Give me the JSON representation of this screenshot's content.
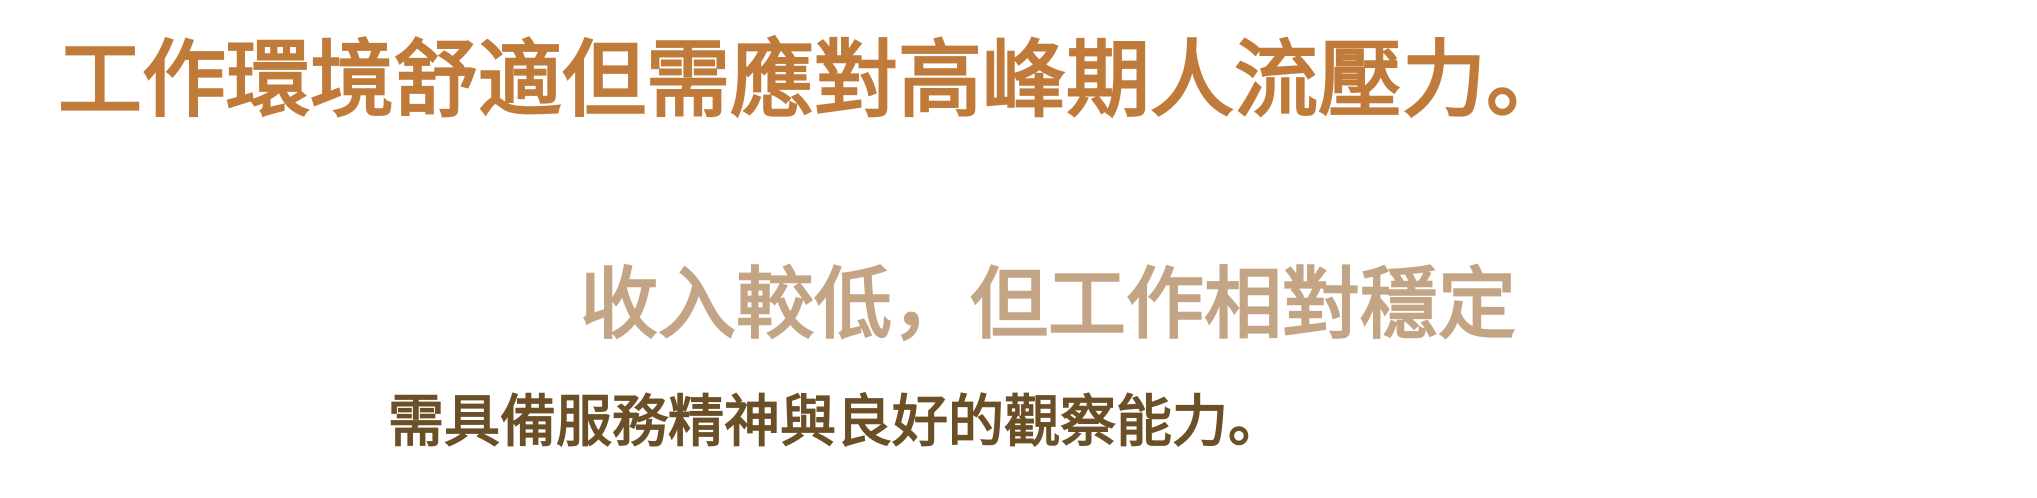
{
  "lines": [
    {
      "text": "工作環境舒適但需應對高峰期人流壓力。",
      "color": "#c07a3a"
    },
    {
      "text": "收入較低，但工作相對穩定",
      "color": "#c3a585"
    },
    {
      "text": "需具備服務精神與良好的觀察能力。",
      "color": "#6b4f27"
    }
  ]
}
